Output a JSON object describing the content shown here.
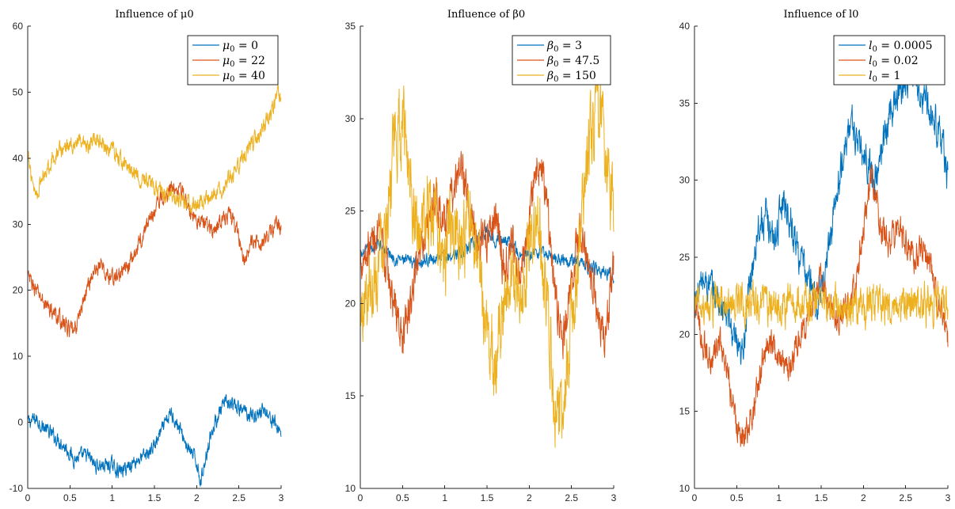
{
  "chart_data": [
    {
      "type": "line",
      "title": "Influence of μ0",
      "xlim": [
        0,
        3
      ],
      "ylim": [
        -10,
        60
      ],
      "xticks": [
        "0",
        "0.5",
        "1",
        "1.5",
        "2",
        "2.5",
        "3"
      ],
      "yticks": [
        "-10",
        "0",
        "10",
        "20",
        "30",
        "40",
        "50",
        "60"
      ],
      "legend_position": "top-right",
      "series": [
        {
          "name": "μ0 = 0",
          "color": "#0072BD",
          "noise": 0.8,
          "anchors": [
            [
              0,
              0
            ],
            [
              0.1,
              0.5
            ],
            [
              0.25,
              -1.5
            ],
            [
              0.4,
              -3
            ],
            [
              0.55,
              -5.5
            ],
            [
              0.7,
              -5
            ],
            [
              0.8,
              -6.5
            ],
            [
              1.0,
              -6.5
            ],
            [
              1.1,
              -7.5
            ],
            [
              1.25,
              -6
            ],
            [
              1.4,
              -5
            ],
            [
              1.5,
              -3.5
            ],
            [
              1.6,
              -1
            ],
            [
              1.7,
              1.5
            ],
            [
              1.8,
              -1
            ],
            [
              1.9,
              -4
            ],
            [
              2.0,
              -6
            ],
            [
              2.05,
              -9
            ],
            [
              2.15,
              -2.5
            ],
            [
              2.25,
              1
            ],
            [
              2.35,
              3
            ],
            [
              2.5,
              2
            ],
            [
              2.7,
              1
            ],
            [
              2.8,
              2
            ],
            [
              3.0,
              -1.5
            ]
          ]
        },
        {
          "name": "μ0 = 22",
          "color": "#D95319",
          "noise": 0.9,
          "anchors": [
            [
              0,
              22
            ],
            [
              0.1,
              20
            ],
            [
              0.2,
              18
            ],
            [
              0.35,
              16
            ],
            [
              0.5,
              14
            ],
            [
              0.55,
              13.5
            ],
            [
              0.65,
              18
            ],
            [
              0.75,
              22
            ],
            [
              0.85,
              24
            ],
            [
              0.95,
              22
            ],
            [
              1.05,
              22
            ],
            [
              1.15,
              23
            ],
            [
              1.25,
              25
            ],
            [
              1.35,
              28
            ],
            [
              1.45,
              31
            ],
            [
              1.55,
              33.5
            ],
            [
              1.7,
              35.5
            ],
            [
              1.8,
              36
            ],
            [
              1.9,
              32
            ],
            [
              2.0,
              31
            ],
            [
              2.1,
              30
            ],
            [
              2.2,
              29
            ],
            [
              2.3,
              31
            ],
            [
              2.4,
              31.5
            ],
            [
              2.5,
              28
            ],
            [
              2.55,
              25
            ],
            [
              2.65,
              27
            ],
            [
              2.8,
              27.5
            ],
            [
              2.95,
              30
            ],
            [
              3.0,
              29.5
            ]
          ]
        },
        {
          "name": "μ0 = 40",
          "color": "#EDB120",
          "noise": 0.9,
          "anchors": [
            [
              0,
              40
            ],
            [
              0.1,
              34.5
            ],
            [
              0.2,
              38
            ],
            [
              0.35,
              41
            ],
            [
              0.5,
              42
            ],
            [
              0.6,
              42.5
            ],
            [
              0.7,
              41
            ],
            [
              0.8,
              43.5
            ],
            [
              0.9,
              42
            ],
            [
              1.05,
              40.5
            ],
            [
              1.15,
              39
            ],
            [
              1.3,
              37.5
            ],
            [
              1.45,
              36
            ],
            [
              1.6,
              35
            ],
            [
              1.75,
              34
            ],
            [
              1.9,
              33
            ],
            [
              2.0,
              33
            ],
            [
              2.15,
              34
            ],
            [
              2.3,
              35
            ],
            [
              2.45,
              38
            ],
            [
              2.6,
              41
            ],
            [
              2.75,
              44
            ],
            [
              2.85,
              46
            ],
            [
              2.95,
              49
            ],
            [
              3.0,
              50
            ]
          ]
        }
      ]
    },
    {
      "type": "line",
      "title": "Influence of β0",
      "xlim": [
        0,
        3
      ],
      "ylim": [
        10,
        35
      ],
      "xticks": [
        "0",
        "0.5",
        "1",
        "1.5",
        "2",
        "2.5",
        "3"
      ],
      "yticks": [
        "10",
        "15",
        "20",
        "25",
        "30",
        "35"
      ],
      "legend_position": "top-right",
      "series": [
        {
          "name": "β0 = 3",
          "color": "#0072BD",
          "noise": 0.25,
          "anchors": [
            [
              0,
              22.5
            ],
            [
              0.2,
              23.2
            ],
            [
              0.4,
              22.5
            ],
            [
              0.6,
              22.2
            ],
            [
              0.8,
              22.4
            ],
            [
              1.0,
              22.5
            ],
            [
              1.2,
              22.8
            ],
            [
              1.35,
              23.2
            ],
            [
              1.5,
              24
            ],
            [
              1.6,
              23.5
            ],
            [
              1.75,
              23.5
            ],
            [
              1.9,
              22.5
            ],
            [
              2.1,
              22.8
            ],
            [
              2.3,
              22.5
            ],
            [
              2.5,
              22.4
            ],
            [
              2.7,
              22
            ],
            [
              2.85,
              21.8
            ],
            [
              3.0,
              21.5
            ]
          ]
        },
        {
          "name": "β0 = 47.5",
          "color": "#D95319",
          "noise": 0.8,
          "anchors": [
            [
              0,
              22.5
            ],
            [
              0.1,
              23
            ],
            [
              0.2,
              24
            ],
            [
              0.3,
              22
            ],
            [
              0.4,
              20
            ],
            [
              0.5,
              18
            ],
            [
              0.6,
              20
            ],
            [
              0.7,
              23
            ],
            [
              0.8,
              24.5
            ],
            [
              0.9,
              26
            ],
            [
              1.0,
              24
            ],
            [
              1.1,
              26
            ],
            [
              1.2,
              27.5
            ],
            [
              1.3,
              25
            ],
            [
              1.4,
              23
            ],
            [
              1.5,
              23.5
            ],
            [
              1.6,
              25
            ],
            [
              1.7,
              22
            ],
            [
              1.8,
              23
            ],
            [
              1.9,
              21
            ],
            [
              2.0,
              25
            ],
            [
              2.1,
              28
            ],
            [
              2.2,
              26
            ],
            [
              2.3,
              20.5
            ],
            [
              2.4,
              18
            ],
            [
              2.5,
              21
            ],
            [
              2.6,
              24
            ],
            [
              2.7,
              22
            ],
            [
              2.8,
              20
            ],
            [
              2.9,
              18
            ],
            [
              3.0,
              22
            ]
          ]
        },
        {
          "name": "β0 = 150",
          "color": "#EDB120",
          "noise": 1.5,
          "anchors": [
            [
              0,
              19
            ],
            [
              0.1,
              21
            ],
            [
              0.2,
              22
            ],
            [
              0.3,
              25
            ],
            [
              0.4,
              28
            ],
            [
              0.5,
              30
            ],
            [
              0.6,
              27
            ],
            [
              0.7,
              23
            ],
            [
              0.8,
              25
            ],
            [
              0.9,
              24
            ],
            [
              1.0,
              22
            ],
            [
              1.1,
              25
            ],
            [
              1.2,
              23
            ],
            [
              1.3,
              24
            ],
            [
              1.4,
              22
            ],
            [
              1.5,
              18
            ],
            [
              1.6,
              17
            ],
            [
              1.7,
              20
            ],
            [
              1.8,
              22
            ],
            [
              1.9,
              20
            ],
            [
              2.0,
              23
            ],
            [
              2.1,
              25
            ],
            [
              2.2,
              21
            ],
            [
              2.3,
              15
            ],
            [
              2.4,
              13.5
            ],
            [
              2.5,
              19
            ],
            [
              2.6,
              23
            ],
            [
              2.7,
              28
            ],
            [
              2.8,
              31
            ],
            [
              2.9,
              29
            ],
            [
              3.0,
              24
            ]
          ]
        }
      ]
    },
    {
      "type": "line",
      "title": "Influence of l0",
      "xlim": [
        0,
        3
      ],
      "ylim": [
        10,
        40
      ],
      "xticks": [
        "0",
        "0.5",
        "1",
        "1.5",
        "2",
        "2.5",
        "3"
      ],
      "yticks": [
        "10",
        "15",
        "20",
        "25",
        "30",
        "35",
        "40"
      ],
      "legend_position": "top-right",
      "series": [
        {
          "name": "l0 = 0.0005",
          "color": "#0072BD",
          "noise": 0.8,
          "anchors": [
            [
              0,
              22
            ],
            [
              0.1,
              23.5
            ],
            [
              0.2,
              23
            ],
            [
              0.3,
              22
            ],
            [
              0.4,
              21
            ],
            [
              0.5,
              19
            ],
            [
              0.55,
              18
            ],
            [
              0.65,
              23
            ],
            [
              0.75,
              27
            ],
            [
              0.85,
              27.5
            ],
            [
              0.95,
              26
            ],
            [
              1.05,
              29
            ],
            [
              1.15,
              27
            ],
            [
              1.25,
              25
            ],
            [
              1.35,
              23.5
            ],
            [
              1.45,
              22
            ],
            [
              1.55,
              24
            ],
            [
              1.65,
              28
            ],
            [
              1.75,
              31
            ],
            [
              1.85,
              34
            ],
            [
              1.95,
              32
            ],
            [
              2.05,
              31
            ],
            [
              2.15,
              30
            ],
            [
              2.25,
              33
            ],
            [
              2.35,
              35
            ],
            [
              2.45,
              36
            ],
            [
              2.55,
              37
            ],
            [
              2.65,
              36
            ],
            [
              2.75,
              35
            ],
            [
              2.85,
              34
            ],
            [
              2.95,
              32
            ],
            [
              3.0,
              30
            ]
          ]
        },
        {
          "name": "l0 = 0.02",
          "color": "#D95319",
          "noise": 0.7,
          "anchors": [
            [
              0,
              22
            ],
            [
              0.1,
              19.5
            ],
            [
              0.2,
              18
            ],
            [
              0.3,
              19.5
            ],
            [
              0.4,
              17
            ],
            [
              0.5,
              14
            ],
            [
              0.6,
              13.5
            ],
            [
              0.7,
              15
            ],
            [
              0.8,
              18
            ],
            [
              0.9,
              20
            ],
            [
              1.0,
              18.5
            ],
            [
              1.1,
              17.5
            ],
            [
              1.2,
              19
            ],
            [
              1.3,
              20.5
            ],
            [
              1.4,
              22
            ],
            [
              1.5,
              24
            ],
            [
              1.6,
              22
            ],
            [
              1.7,
              21
            ],
            [
              1.8,
              22
            ],
            [
              1.9,
              23
            ],
            [
              2.0,
              27
            ],
            [
              2.1,
              30
            ],
            [
              2.2,
              27
            ],
            [
              2.3,
              26
            ],
            [
              2.4,
              27
            ],
            [
              2.5,
              26
            ],
            [
              2.6,
              25
            ],
            [
              2.7,
              25.5
            ],
            [
              2.8,
              24
            ],
            [
              2.9,
              22
            ],
            [
              3.0,
              19.5
            ]
          ]
        },
        {
          "name": "l0 = 1",
          "color": "#EDB120",
          "noise": 0.9,
          "anchors": [
            [
              0,
              22
            ],
            [
              0.5,
              22
            ],
            [
              1.0,
              22
            ],
            [
              1.5,
              22
            ],
            [
              2.0,
              21.8
            ],
            [
              2.5,
              21.8
            ],
            [
              3.0,
              22
            ]
          ]
        }
      ]
    }
  ]
}
